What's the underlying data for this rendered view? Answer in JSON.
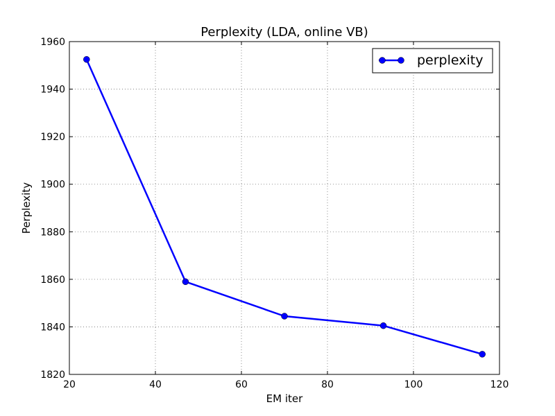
{
  "chart_data": {
    "type": "line",
    "title": "Perplexity (LDA, online VB)",
    "xlabel": "EM iter",
    "ylabel": "Perplexity",
    "xlim": [
      20,
      120
    ],
    "ylim": [
      1820,
      1960
    ],
    "xticks": [
      "20",
      "40",
      "60",
      "80",
      "100",
      "120"
    ],
    "yticks": [
      "1820",
      "1840",
      "1860",
      "1880",
      "1900",
      "1920",
      "1940",
      "1960"
    ],
    "grid": true,
    "legend_position": "top-right",
    "series": [
      {
        "name": "perplexity",
        "color": "#0000ff",
        "marker": "circle",
        "x": [
          24,
          47,
          70,
          93,
          116
        ],
        "y": [
          1952.5,
          1859,
          1844.5,
          1840.5,
          1828.5
        ]
      }
    ]
  }
}
